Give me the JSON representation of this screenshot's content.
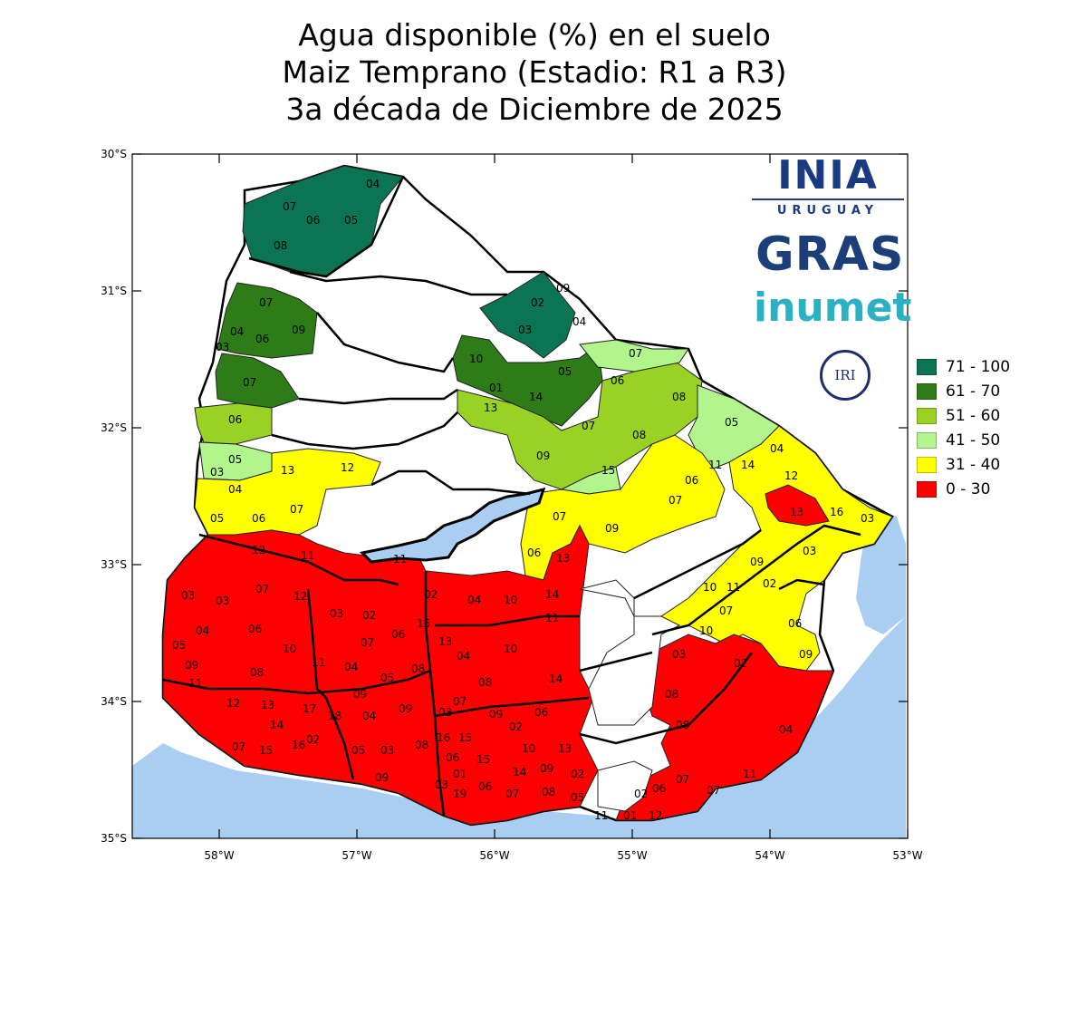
{
  "title": {
    "line1": "Agua disponible (%) en el suelo",
    "line2": "Maiz Temprano (Estadio: R1 a R3)",
    "line3": "3a década de Diciembre de 2025"
  },
  "axes": {
    "lat_labels": [
      "30°S",
      "31°S",
      "32°S",
      "33°S",
      "34°S",
      "35°S"
    ],
    "lon_labels": [
      "58°W",
      "57°W",
      "56°W",
      "55°W",
      "54°W",
      "53°W"
    ]
  },
  "legend": [
    {
      "label": "71 - 100",
      "color": "#0b7553"
    },
    {
      "label": "61 - 70",
      "color": "#2e7c18"
    },
    {
      "label": "51 - 60",
      "color": "#9ad125"
    },
    {
      "label": "41 - 50",
      "color": "#b2f58c"
    },
    {
      "label": "31 - 40",
      "color": "#ffff00"
    },
    {
      "label": "0 - 30",
      "color": "#ff0000"
    }
  ],
  "logos": {
    "ina_mark": "INIA",
    "ina_sub": "URUGUAY",
    "gras": "GRAS",
    "inumet": "inumet",
    "iri": "IRI"
  },
  "colors": {
    "water": "#aacdf2",
    "no_data": "#ffffff",
    "border": "#000000"
  },
  "zone_codes": [
    {
      "code": "04"
    },
    {
      "code": "07"
    },
    {
      "code": "06"
    },
    {
      "code": "05"
    },
    {
      "code": "08"
    },
    {
      "code": "07"
    },
    {
      "code": "09"
    },
    {
      "code": "04"
    },
    {
      "code": "06"
    },
    {
      "code": "03"
    },
    {
      "code": "07"
    },
    {
      "code": "06"
    },
    {
      "code": "05"
    },
    {
      "code": "03"
    },
    {
      "code": "13"
    },
    {
      "code": "12"
    },
    {
      "code": "04"
    },
    {
      "code": "05"
    },
    {
      "code": "06"
    },
    {
      "code": "07"
    },
    {
      "code": "02"
    },
    {
      "code": "09"
    },
    {
      "code": "03"
    },
    {
      "code": "04"
    },
    {
      "code": "10"
    },
    {
      "code": "01"
    },
    {
      "code": "14"
    },
    {
      "code": "13"
    },
    {
      "code": "05"
    },
    {
      "code": "07"
    },
    {
      "code": "06"
    },
    {
      "code": "08"
    },
    {
      "code": "07"
    },
    {
      "code": "08"
    },
    {
      "code": "09"
    },
    {
      "code": "15"
    },
    {
      "code": "05"
    },
    {
      "code": "04"
    },
    {
      "code": "12"
    },
    {
      "code": "11"
    },
    {
      "code": "14"
    },
    {
      "code": "06"
    },
    {
      "code": "07"
    },
    {
      "code": "09"
    },
    {
      "code": "13"
    },
    {
      "code": "16"
    },
    {
      "code": "03"
    },
    {
      "code": "03"
    },
    {
      "code": "09"
    },
    {
      "code": "02"
    },
    {
      "code": "10"
    },
    {
      "code": "11"
    },
    {
      "code": "07"
    },
    {
      "code": "10"
    },
    {
      "code": "06"
    },
    {
      "code": "09"
    },
    {
      "code": "07"
    },
    {
      "code": "06"
    },
    {
      "code": "13"
    },
    {
      "code": "12"
    },
    {
      "code": "11"
    },
    {
      "code": "11"
    },
    {
      "code": "03"
    },
    {
      "code": "03"
    },
    {
      "code": "07"
    },
    {
      "code": "12"
    },
    {
      "code": "04"
    },
    {
      "code": "06"
    },
    {
      "code": "05"
    },
    {
      "code": "10"
    },
    {
      "code": "09"
    },
    {
      "code": "08"
    },
    {
      "code": "11"
    },
    {
      "code": "03"
    },
    {
      "code": "02"
    },
    {
      "code": "07"
    },
    {
      "code": "06"
    },
    {
      "code": "04"
    },
    {
      "code": "05"
    },
    {
      "code": "08"
    },
    {
      "code": "02"
    },
    {
      "code": "04"
    },
    {
      "code": "10"
    },
    {
      "code": "14"
    },
    {
      "code": "11"
    },
    {
      "code": "15"
    },
    {
      "code": "13"
    },
    {
      "code": "04"
    },
    {
      "code": "10"
    },
    {
      "code": "08"
    },
    {
      "code": "14"
    },
    {
      "code": "11"
    },
    {
      "code": "12"
    },
    {
      "code": "13"
    },
    {
      "code": "17"
    },
    {
      "code": "18"
    },
    {
      "code": "09"
    },
    {
      "code": "09"
    },
    {
      "code": "07"
    },
    {
      "code": "03"
    },
    {
      "code": "09"
    },
    {
      "code": "06"
    },
    {
      "code": "04"
    },
    {
      "code": "14"
    },
    {
      "code": "16"
    },
    {
      "code": "02"
    },
    {
      "code": "07"
    },
    {
      "code": "15"
    },
    {
      "code": "05"
    },
    {
      "code": "03"
    },
    {
      "code": "08"
    },
    {
      "code": "16"
    },
    {
      "code": "15"
    },
    {
      "code": "10"
    },
    {
      "code": "02"
    },
    {
      "code": "13"
    },
    {
      "code": "09"
    },
    {
      "code": "06"
    },
    {
      "code": "01"
    },
    {
      "code": "15"
    },
    {
      "code": "14"
    },
    {
      "code": "03"
    },
    {
      "code": "06"
    },
    {
      "code": "02"
    },
    {
      "code": "19"
    },
    {
      "code": "08"
    },
    {
      "code": "05"
    },
    {
      "code": "07"
    },
    {
      "code": "09"
    },
    {
      "code": "03"
    },
    {
      "code": "08"
    },
    {
      "code": "08"
    },
    {
      "code": "02"
    },
    {
      "code": "04"
    },
    {
      "code": "06"
    },
    {
      "code": "07"
    },
    {
      "code": "02"
    },
    {
      "code": "12"
    },
    {
      "code": "07"
    },
    {
      "code": "11"
    },
    {
      "code": "01"
    },
    {
      "code": "11"
    }
  ]
}
